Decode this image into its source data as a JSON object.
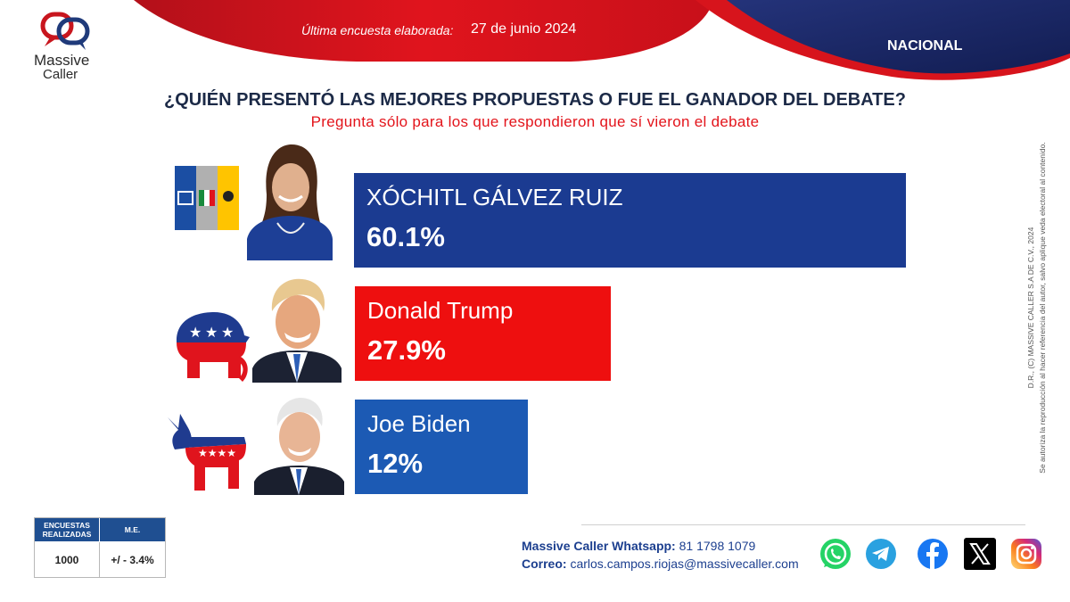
{
  "brand": {
    "name_line1": "Massive",
    "name_line2": "Caller",
    "colors": {
      "red": "#d7141c",
      "navy": "#182a66",
      "blue": "#1b3b91"
    }
  },
  "header": {
    "survey_label": "Última encuesta elaborada:",
    "survey_date": "27 de junio 2024",
    "scope": "NACIONAL"
  },
  "question": {
    "title": "¿QUIÉN PRESENTÓ LAS MEJORES PROPUESTAS O FUE EL GANADOR DEL DEBATE?",
    "subtitle": "Pregunta sólo para los que respondieron que sí vieron el debate"
  },
  "chart_data": {
    "type": "bar",
    "orientation": "horizontal",
    "categories": [
      "XÓCHITL GÁLVEZ RUIZ",
      "Donald Trump",
      "Joe Biden"
    ],
    "values": [
      60.1,
      27.9,
      12
    ],
    "value_labels": [
      "60.1%",
      "27.9%",
      "12%"
    ],
    "colors": [
      "#1b3b91",
      "#ee0f0f",
      "#1c5ab4"
    ],
    "xlim": [
      0,
      100
    ],
    "grid": false,
    "party_icons": [
      "pan-pri-prd-flags-icon",
      "republican-elephant-icon",
      "democrat-donkey-icon"
    ],
    "portrait_icons": [
      "candidate-portrait-icon",
      "candidate-portrait-icon",
      "candidate-portrait-icon"
    ]
  },
  "side_note": {
    "line1": "D.R., (C) MASSIVE CALLER S.A DE C.V., 2024",
    "line2": "Se autoriza la reproducción al hacer referencia del autor, salvo aplique veda electoral al contenido."
  },
  "stats": {
    "col1_header": "ENCUESTAS REALIZADAS",
    "col2_header": "M.E.",
    "col1_value": "1000",
    "col2_value": "+/ - 3.4%"
  },
  "contact": {
    "whatsapp_label": "Massive Caller Whatsapp:",
    "whatsapp_value": "81 1798  1079",
    "email_label": "Correo:",
    "email_value": "carlos.campos.riojas@massivecaller.com"
  },
  "social": {
    "icons": [
      "whatsapp-icon",
      "telegram-icon",
      "facebook-icon",
      "x-icon",
      "instagram-icon"
    ]
  }
}
